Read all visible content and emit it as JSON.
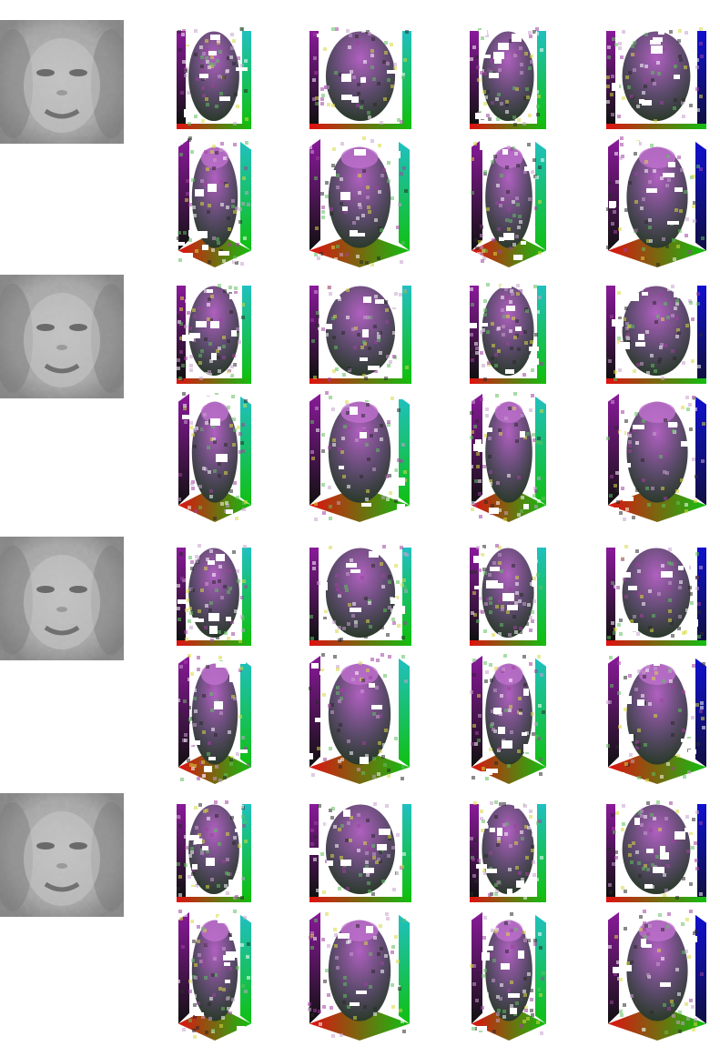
{
  "figure": {
    "description_free": true,
    "subjects": [
      {
        "id": 1,
        "views": 4,
        "rows": [
          "front",
          "elevated"
        ]
      },
      {
        "id": 2,
        "views": 4,
        "rows": [
          "front",
          "elevated"
        ]
      },
      {
        "id": 3,
        "views": 4,
        "rows": [
          "front",
          "elevated"
        ]
      },
      {
        "id": 4,
        "views": 4,
        "rows": [
          "front",
          "elevated"
        ]
      }
    ],
    "colors": {
      "background": "#ffffff",
      "face_light": "#c9c9c9",
      "face_dark": "#8a8a8a",
      "voxel_red": "#e01010",
      "voxel_green": "#10c010",
      "voxel_blue": "#1010d0",
      "voxel_purple": "#8a1a9a",
      "voxel_cyan": "#20c0c0",
      "voxel_yellow": "#d8d820",
      "head_shade": "#5a4a6a"
    }
  }
}
